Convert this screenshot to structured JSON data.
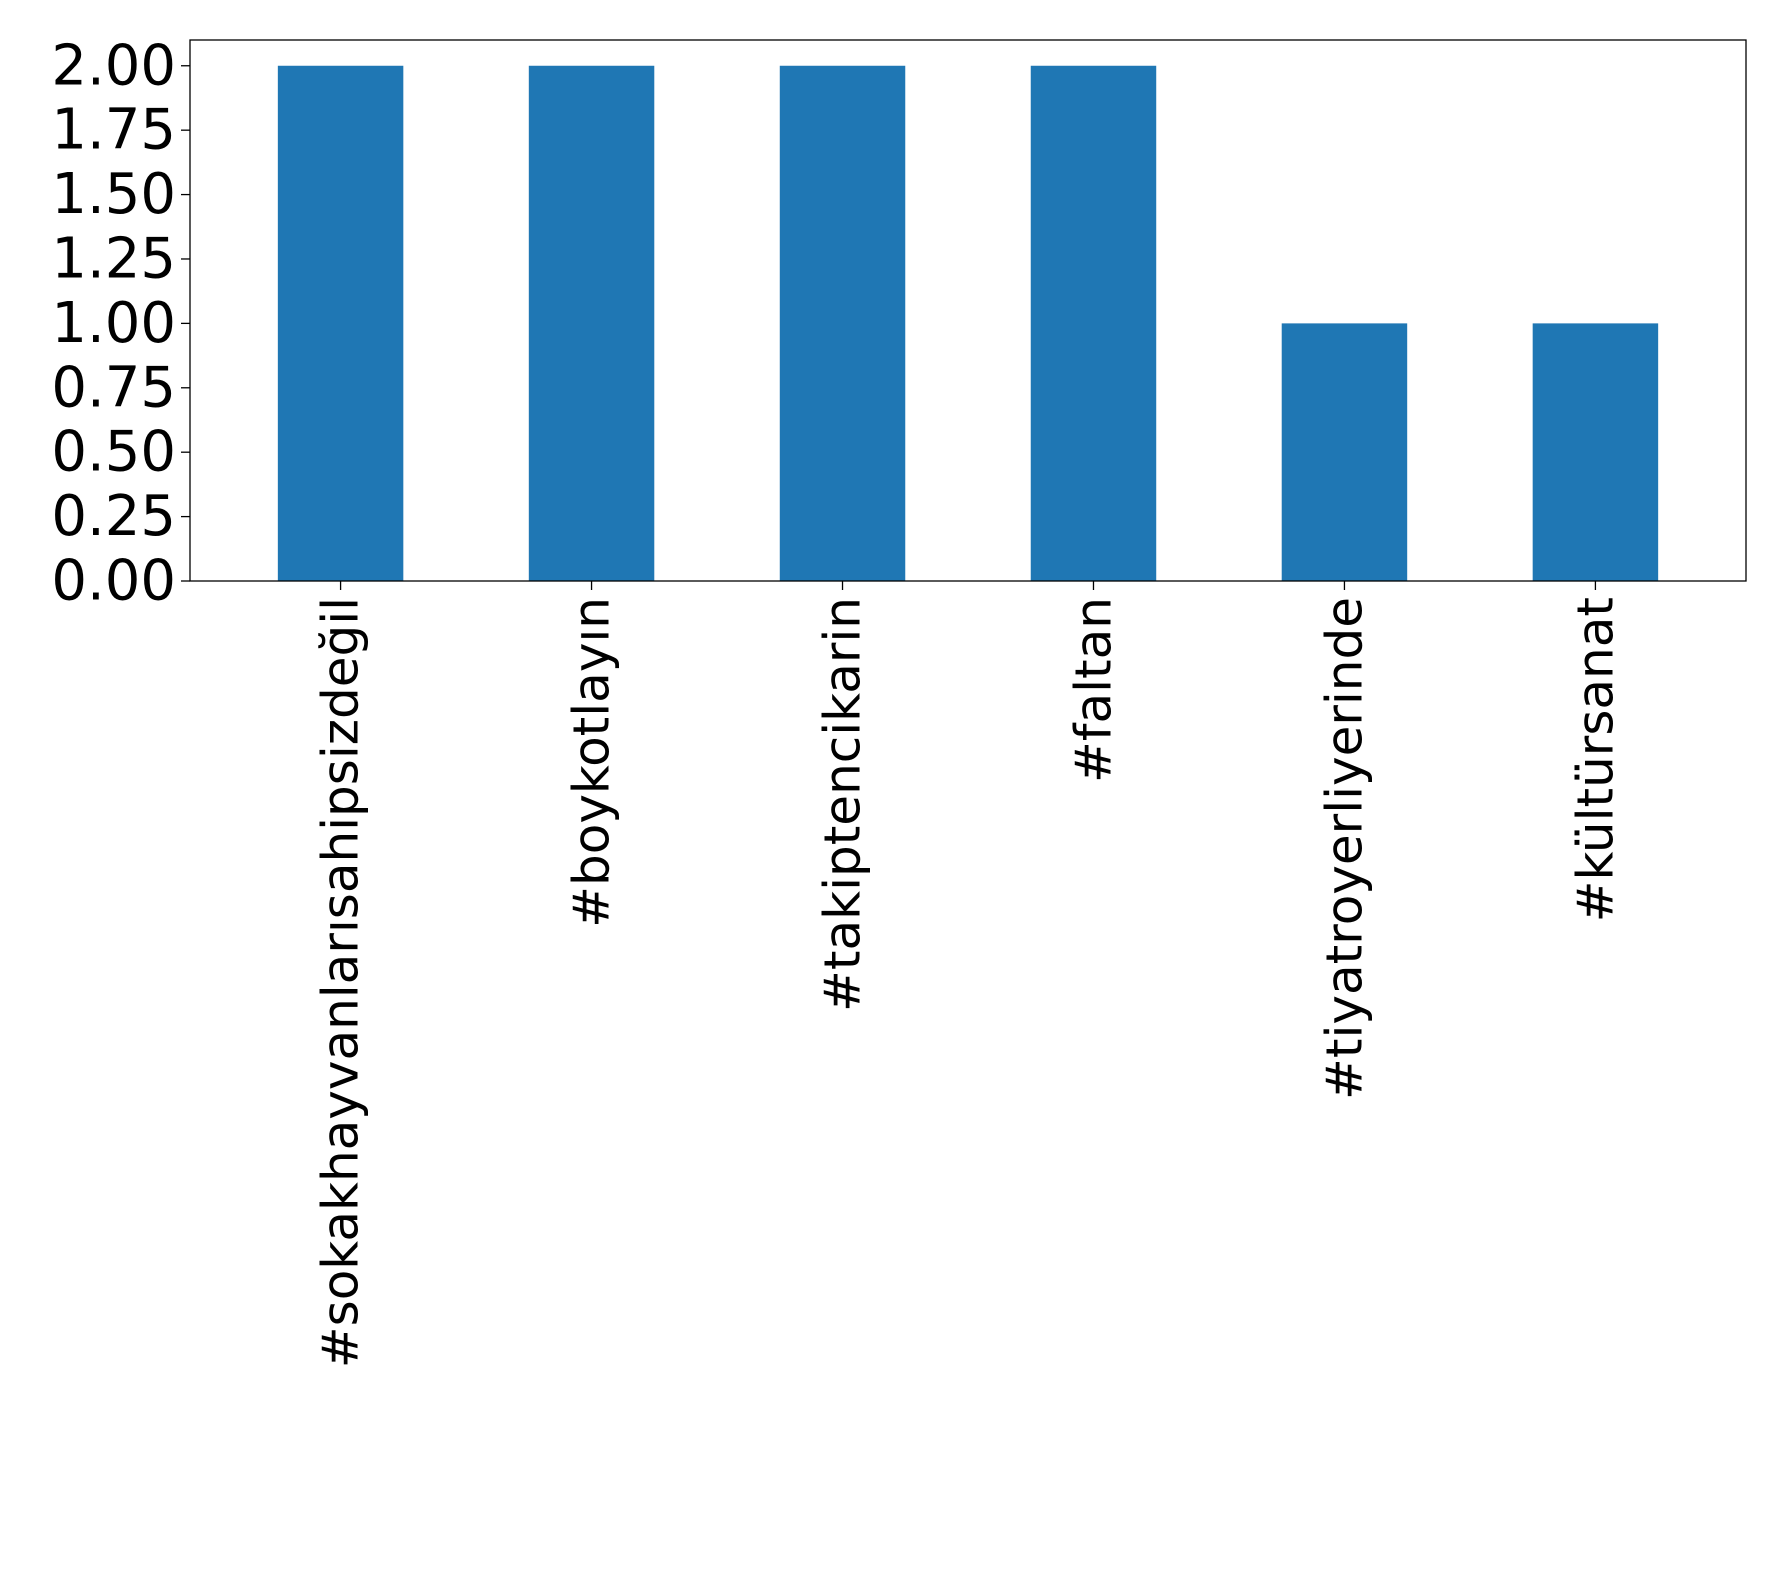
{
  "chart_data": {
    "type": "bar",
    "title": "",
    "xlabel": "",
    "ylabel": "",
    "categories": [
      "#sokakhayvanlarısahipsizdeğil",
      "#boykotlayın",
      "#takiptencikarin",
      "#faltan",
      "#tiyatroyerliyerinde",
      "#kültürsanat"
    ],
    "values": [
      2,
      2,
      2,
      2,
      1,
      1
    ],
    "ylim": [
      0,
      2.1
    ],
    "yticks": [
      "0.00",
      "0.25",
      "0.50",
      "0.75",
      "1.00",
      "1.25",
      "1.50",
      "1.75",
      "2.00"
    ],
    "grid": false,
    "legend": "none",
    "bar_color": "#1f77b4"
  }
}
